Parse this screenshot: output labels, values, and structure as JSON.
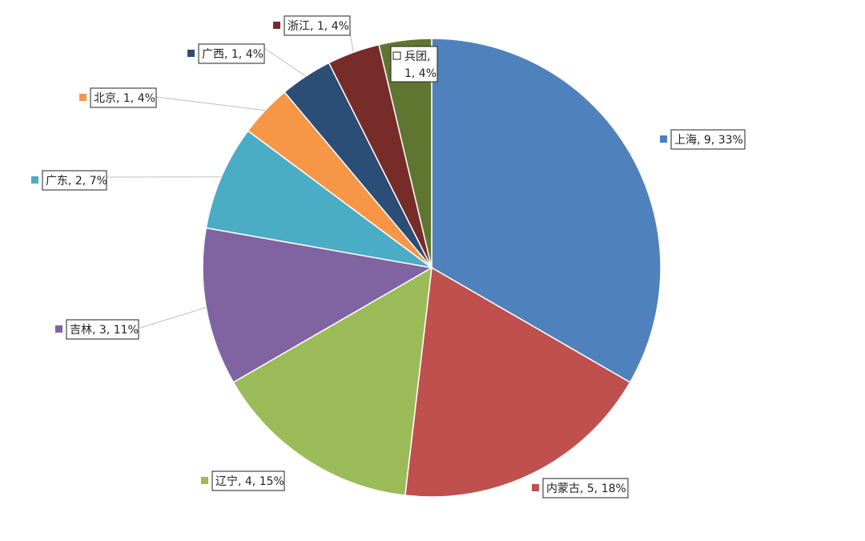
{
  "chart_data": {
    "type": "pie",
    "title": "",
    "categories": [
      "上海",
      "内蒙古",
      "辽宁",
      "吉林",
      "广东",
      "北京",
      "广西",
      "浙江",
      "兵团"
    ],
    "values": [
      9,
      5,
      4,
      3,
      2,
      1,
      1,
      1,
      1
    ],
    "percent_labels": [
      "33%",
      "18%",
      "15%",
      "11%",
      "7%",
      "4%",
      "4%",
      "4%",
      "4%"
    ],
    "labels": [
      "上海, 9, 33%",
      "内蒙古, 5, 18%",
      "辽宁, 4, 15%",
      "吉林, 3, 11%",
      "广东, 2, 7%",
      "北京, 1, 4%",
      "广西, 1, 4%",
      "浙江, 1, 4%",
      "兵团, 1, 4%"
    ],
    "colors": [
      "#4f81bd",
      "#c0504d",
      "#9bbb59",
      "#8064a2",
      "#4bacc6",
      "#f79646",
      "#2c4d75",
      "#772c2a",
      "#5f7530"
    ],
    "start_angle": "12 o'clock",
    "direction": "clockwise",
    "legend": "none"
  }
}
